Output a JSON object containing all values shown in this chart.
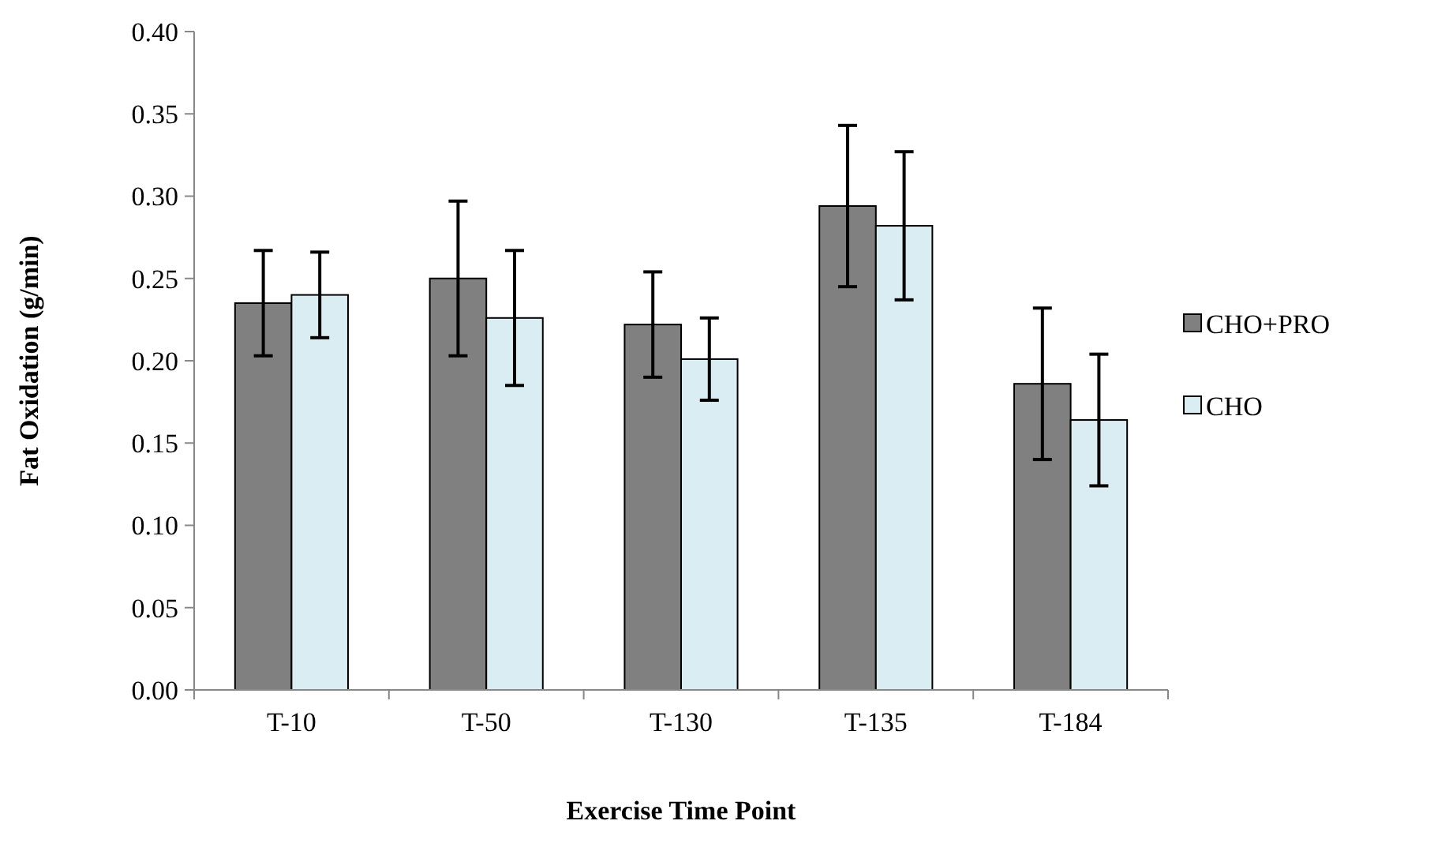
{
  "chart_data": {
    "type": "bar",
    "xlabel": "Exercise Time Point",
    "ylabel": "Fat Oxidation (g/min)",
    "categories": [
      "T-10",
      "T-50",
      "T-130",
      "T-135",
      "T-184"
    ],
    "series": [
      {
        "name": "CHO+PRO",
        "color": "#808080",
        "values": [
          0.235,
          0.25,
          0.222,
          0.294,
          0.186
        ],
        "errors": [
          0.032,
          0.047,
          0.032,
          0.049,
          0.046
        ]
      },
      {
        "name": "CHO",
        "color": "#daedf3",
        "values": [
          0.24,
          0.226,
          0.201,
          0.282,
          0.164
        ],
        "errors": [
          0.026,
          0.041,
          0.025,
          0.045,
          0.04
        ]
      }
    ],
    "ylim": [
      0,
      0.4
    ],
    "yticks": [
      {
        "value": 0,
        "label": "0.00"
      },
      {
        "value": 0.05,
        "label": "0.05"
      },
      {
        "value": 0.1,
        "label": "0.10"
      },
      {
        "value": 0.15,
        "label": "0.15"
      },
      {
        "value": 0.2,
        "label": "0.20"
      },
      {
        "value": 0.25,
        "label": "0.25"
      },
      {
        "value": 0.3,
        "label": "0.30"
      },
      {
        "value": 0.35,
        "label": "0.35"
      },
      {
        "value": 0.4,
        "label": "0.40"
      }
    ],
    "grid": false,
    "legend": "right"
  }
}
